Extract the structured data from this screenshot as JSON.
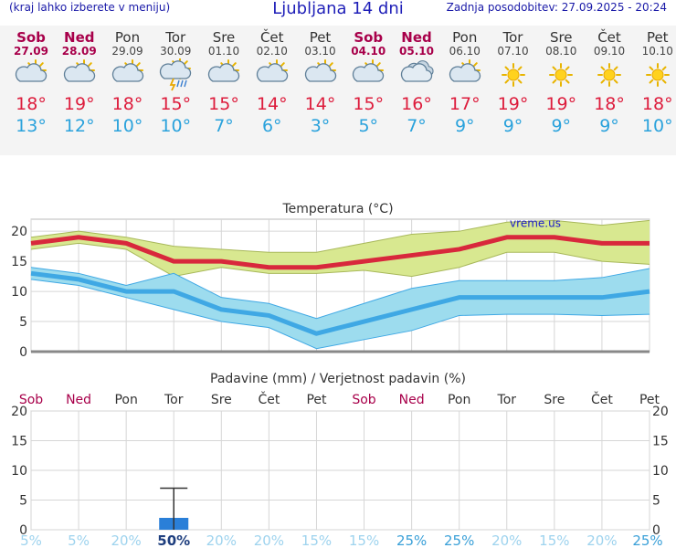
{
  "header": {
    "hint": "(kraj lahko izberete v meniju)",
    "title": "Ljubljana 14 dni",
    "updated": "Zadnja posodobitev: 27.09.2025 - 20:24"
  },
  "days": [
    {
      "name": "Sob",
      "date": "27.09",
      "weekend": true,
      "icon": "partly-cloudy-icon",
      "tmax": "18°",
      "tmin": "13°"
    },
    {
      "name": "Ned",
      "date": "28.09",
      "weekend": true,
      "icon": "partly-cloudy-icon",
      "tmax": "19°",
      "tmin": "12°"
    },
    {
      "name": "Pon",
      "date": "29.09",
      "weekend": false,
      "icon": "partly-cloudy-icon",
      "tmax": "18°",
      "tmin": "10°"
    },
    {
      "name": "Tor",
      "date": "30.09",
      "weekend": false,
      "icon": "thunderstorm-icon",
      "tmax": "15°",
      "tmin": "10°"
    },
    {
      "name": "Sre",
      "date": "01.10",
      "weekend": false,
      "icon": "partly-cloudy-icon",
      "tmax": "15°",
      "tmin": "7°"
    },
    {
      "name": "Čet",
      "date": "02.10",
      "weekend": false,
      "icon": "partly-cloudy-icon",
      "tmax": "14°",
      "tmin": "6°"
    },
    {
      "name": "Pet",
      "date": "03.10",
      "weekend": false,
      "icon": "partly-cloudy-icon",
      "tmax": "14°",
      "tmin": "3°"
    },
    {
      "name": "Sob",
      "date": "04.10",
      "weekend": true,
      "icon": "partly-cloudy-icon",
      "tmax": "15°",
      "tmin": "5°"
    },
    {
      "name": "Ned",
      "date": "05.10",
      "weekend": true,
      "icon": "cloudy-icon",
      "tmax": "16°",
      "tmin": "7°"
    },
    {
      "name": "Pon",
      "date": "06.10",
      "weekend": false,
      "icon": "partly-cloudy-icon",
      "tmax": "17°",
      "tmin": "9°"
    },
    {
      "name": "Tor",
      "date": "07.10",
      "weekend": false,
      "icon": "sun-icon",
      "tmax": "19°",
      "tmin": "9°"
    },
    {
      "name": "Sre",
      "date": "08.10",
      "weekend": false,
      "icon": "sun-icon",
      "tmax": "19°",
      "tmin": "9°"
    },
    {
      "name": "Čet",
      "date": "09.10",
      "weekend": false,
      "icon": "sun-icon",
      "tmax": "18°",
      "tmin": "9°"
    },
    {
      "name": "Pet",
      "date": "10.10",
      "weekend": false,
      "icon": "sun-icon",
      "tmax": "18°",
      "tmin": "10°"
    }
  ],
  "chart_data": [
    {
      "type": "line",
      "title": "Temperatura (°C)",
      "watermark": "vreme.us",
      "x": [
        0,
        1,
        2,
        3,
        4,
        5,
        6,
        7,
        8,
        9,
        10,
        11,
        12,
        13
      ],
      "ylim": [
        0,
        22
      ],
      "yticks": [
        "0",
        "5",
        "10",
        "15",
        "20"
      ],
      "series": [
        {
          "name": "max",
          "color": "#d8283c",
          "values": [
            18,
            19,
            18,
            15,
            15,
            14,
            14,
            15,
            16,
            17,
            19,
            19,
            18,
            18
          ]
        },
        {
          "name": "min",
          "color": "#3fa8e4",
          "values": [
            13,
            12,
            10,
            10,
            7,
            6,
            3,
            5,
            7,
            9,
            9,
            9,
            9,
            10
          ]
        }
      ],
      "bands": [
        {
          "color": "#d8e890",
          "upper": [
            19,
            20,
            19,
            17.5,
            17,
            16.5,
            16.5,
            18,
            19.5,
            20,
            21.5,
            21.8,
            21,
            21.8
          ],
          "lower": [
            17,
            18,
            17,
            12.5,
            14,
            13,
            13,
            13.5,
            12.5,
            14,
            16.5,
            16.5,
            15,
            14.5
          ]
        },
        {
          "color": "#9ddcee",
          "upper": [
            14,
            13,
            11,
            13,
            9,
            8,
            5.5,
            8,
            10.5,
            11.8,
            11.8,
            11.8,
            12.3,
            13.8
          ],
          "lower": [
            12,
            11,
            9,
            7,
            5,
            4,
            0.5,
            2,
            3.5,
            6,
            6.2,
            6.2,
            6,
            6.2
          ]
        }
      ],
      "grid": true
    },
    {
      "type": "bar",
      "title": "Padavine (mm) / Verjetnost padavin (%)",
      "categories": [
        "Sob",
        "Ned",
        "Pon",
        "Tor",
        "Sre",
        "Čet",
        "Pet",
        "Sob",
        "Ned",
        "Pon",
        "Tor",
        "Sre",
        "Čet",
        "Pet"
      ],
      "weekend": [
        true,
        true,
        false,
        false,
        false,
        false,
        false,
        true,
        true,
        false,
        false,
        false,
        false,
        false
      ],
      "values": [
        0,
        0,
        0,
        2,
        0,
        0,
        0,
        0,
        0,
        0,
        0,
        0,
        0,
        0
      ],
      "error_high": [
        null,
        null,
        null,
        7,
        null,
        null,
        null,
        null,
        null,
        null,
        null,
        null,
        null,
        null
      ],
      "ylim": [
        0,
        20
      ],
      "yticks": [
        "0",
        "5",
        "10",
        "15",
        "20"
      ],
      "probability": [
        "5%",
        "5%",
        "20%",
        "50%",
        "20%",
        "20%",
        "15%",
        "15%",
        "25%",
        "25%",
        "20%",
        "15%",
        "20%",
        "25%"
      ],
      "bar_color": "#2a7fd8",
      "grid": true
    }
  ]
}
